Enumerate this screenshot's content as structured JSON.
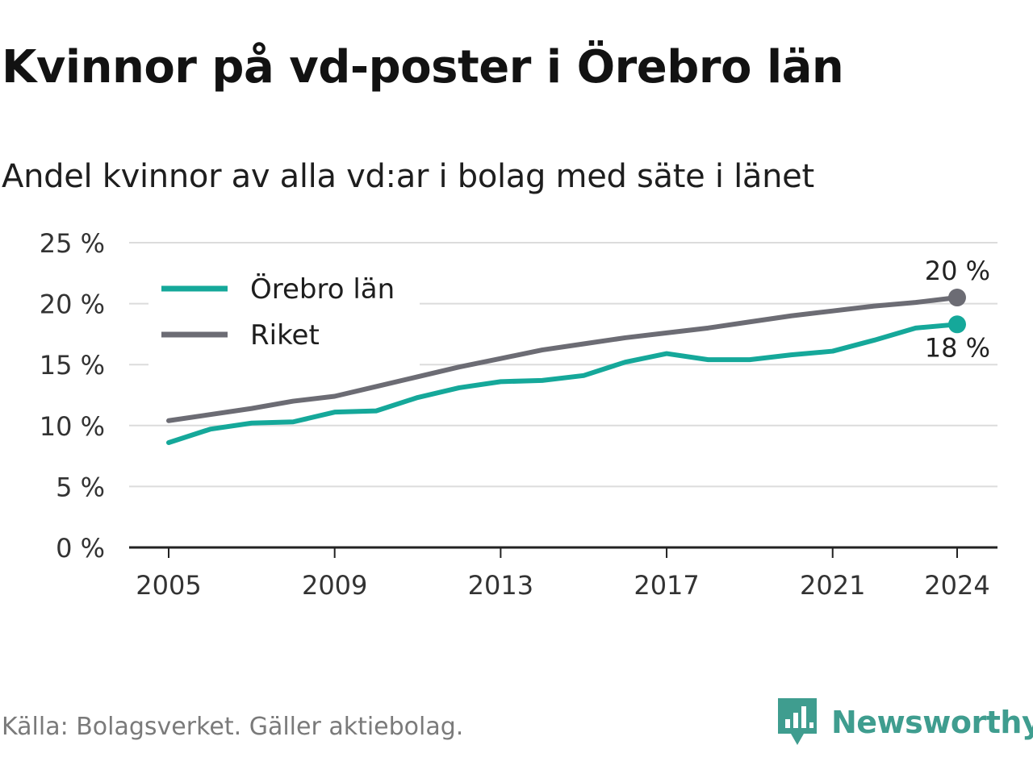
{
  "title": "Kvinnor på vd-poster i Örebro län",
  "subtitle": "Andel kvinnor av alla vd:ar i bolag med säte i länet",
  "source": "Källa: Bolagsverket. Gäller aktiebolag.",
  "brand": {
    "name": "Newsworthy",
    "icon": "newsworthy-logo-icon",
    "color": "#3f9d8f"
  },
  "chart_data": {
    "type": "line",
    "x": [
      2005,
      2006,
      2007,
      2008,
      2009,
      2010,
      2011,
      2012,
      2013,
      2014,
      2015,
      2016,
      2017,
      2018,
      2019,
      2020,
      2021,
      2022,
      2023,
      2024
    ],
    "series": [
      {
        "name": "Örebro län",
        "color": "#15a89a",
        "values": [
          8.6,
          9.7,
          10.2,
          10.3,
          11.1,
          11.2,
          12.3,
          13.1,
          13.6,
          13.7,
          14.1,
          15.2,
          15.9,
          15.4,
          15.4,
          15.8,
          16.1,
          17.0,
          18.0,
          18.3
        ],
        "end_label": "18 %"
      },
      {
        "name": "Riket",
        "color": "#6c6c74",
        "values": [
          10.4,
          10.9,
          11.4,
          12.0,
          12.4,
          13.2,
          14.0,
          14.8,
          15.5,
          16.2,
          16.7,
          17.2,
          17.6,
          18.0,
          18.5,
          19.0,
          19.4,
          19.8,
          20.1,
          20.5
        ],
        "end_label": "20 %"
      }
    ],
    "x_ticks": [
      "2005",
      "2009",
      "2013",
      "2017",
      "2021",
      "2024"
    ],
    "y_ticks": [
      "0 %",
      "5 %",
      "10 %",
      "15 %",
      "20 %",
      "25 %"
    ],
    "ylim": [
      0,
      25
    ],
    "grid": true,
    "legend": "top-left"
  }
}
